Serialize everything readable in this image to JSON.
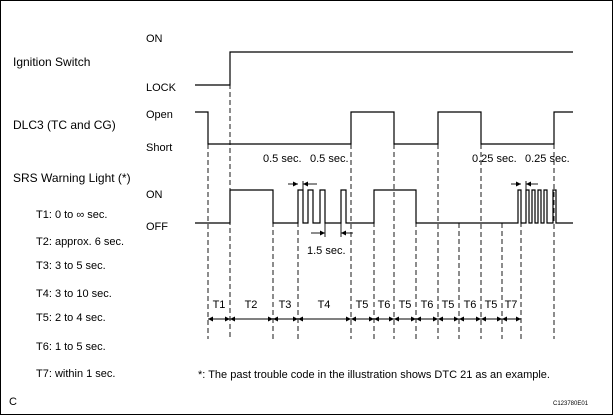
{
  "signals": {
    "ignition_label": "Ignition Switch",
    "ign_on": "ON",
    "ign_lock": "LOCK",
    "dlc_label": "DLC3 (TC and CG)",
    "dlc_open": "Open",
    "dlc_short": "Short",
    "srs_label": "SRS Warning Light (*)",
    "srs_on": "ON",
    "srs_off": "OFF"
  },
  "durations": [
    "T1: 0 to ∞ sec.",
    "T2: approx. 6 sec.",
    "T3: 3 to 5 sec.",
    "T4: 3 to 10 sec.",
    "T5: 2 to 4 sec.",
    "T6: 1 to 5 sec.",
    "T7: within 1 sec."
  ],
  "annotations": {
    "half_sec_a": "0.5 sec.",
    "half_sec_b": "0.5 sec.",
    "one_half_sec": "1.5 sec.",
    "quarter_sec_a": "0.25 sec.",
    "quarter_sec_b": "0.25 sec."
  },
  "intervals": [
    "T1",
    "T2",
    "T3",
    "T4",
    "T5",
    "T6",
    "T5",
    "T6",
    "T5",
    "T6",
    "T5",
    "T7"
  ],
  "footnote": "*: The past trouble code in the illustration shows DTC 21 as an example.",
  "corner_letter": "C",
  "figure_id": "C123780E01"
}
